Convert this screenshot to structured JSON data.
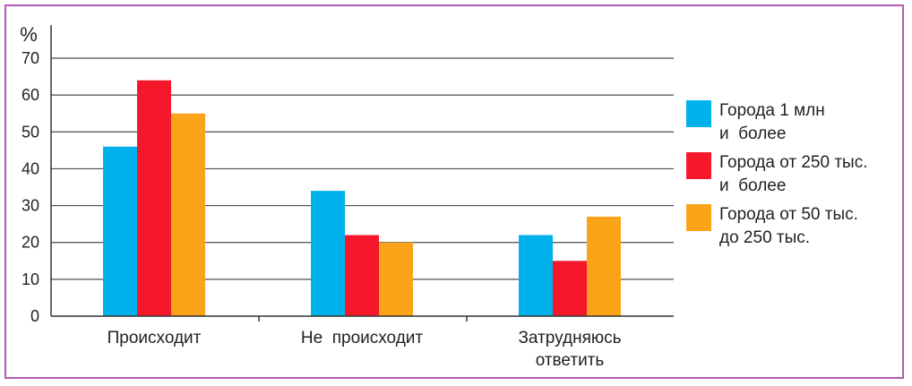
{
  "chart_data": {
    "type": "bar",
    "ylabel": "%",
    "ylim": [
      0,
      70
    ],
    "yticks": [
      0,
      10,
      20,
      30,
      40,
      50,
      60,
      70
    ],
    "grid": true,
    "legend_position": "right",
    "categories": [
      [
        "Происходит"
      ],
      [
        "Не  происходит"
      ],
      [
        "Затрудняюсь",
        "ответить"
      ]
    ],
    "series": [
      {
        "name": [
          "Города 1 млн",
          "и  более"
        ],
        "color": "#00b2ec",
        "values": [
          46,
          34,
          22
        ]
      },
      {
        "name": [
          "Города от 250 тыс.",
          "и  более"
        ],
        "color": "#f5182b",
        "values": [
          64,
          22,
          15
        ]
      },
      {
        "name": [
          "Города от 50 тыс.",
          "до 250 тыс."
        ],
        "color": "#fba41a",
        "values": [
          55,
          20,
          27
        ]
      }
    ]
  }
}
